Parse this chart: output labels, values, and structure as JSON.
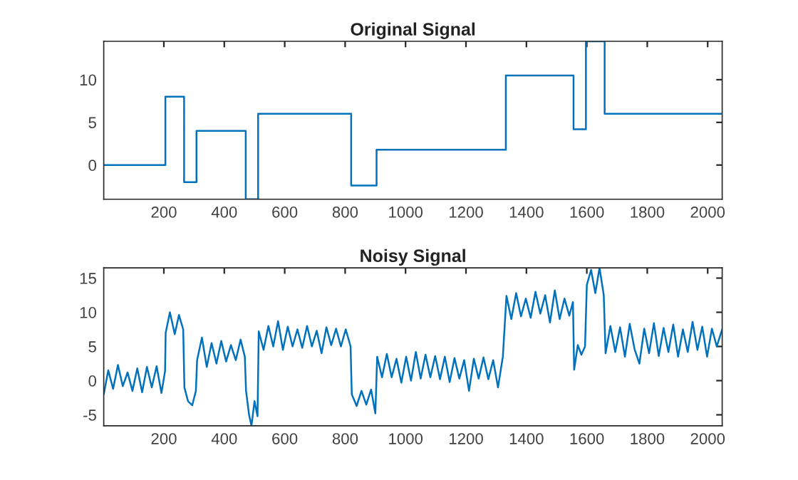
{
  "chart_data": [
    {
      "type": "step",
      "title": "Original Signal",
      "xlim": [
        1,
        2048
      ],
      "ylim": [
        -4,
        14.5
      ],
      "xticks": [
        200,
        400,
        600,
        800,
        1000,
        1200,
        1400,
        1600,
        1800,
        2000
      ],
      "yticks": [
        0,
        5,
        10
      ],
      "grid": false,
      "legend": false,
      "series": [
        {
          "color": "#0072bd",
          "x": [
            1,
            205,
            267,
            308,
            471,
            512,
            820,
            904,
            1332,
            1556,
            1597,
            1659,
            2048
          ],
          "values": [
            0,
            8,
            -2,
            4,
            -4,
            6,
            -2.4,
            1.8,
            10.5,
            4.2,
            14.5,
            6,
            6
          ]
        }
      ]
    },
    {
      "type": "line",
      "title": "Noisy Signal",
      "xlim": [
        1,
        2048
      ],
      "ylim": [
        -6.6,
        16.5
      ],
      "xticks": [
        200,
        400,
        600,
        800,
        1000,
        1200,
        1400,
        1600,
        1800,
        2000
      ],
      "yticks": [
        -5,
        0,
        5,
        10,
        15
      ],
      "grid": false,
      "legend": false,
      "series": [
        {
          "color": "#0072bd",
          "x": [
            1,
            16,
            32,
            48,
            64,
            80,
            96,
            112,
            128,
            144,
            160,
            176,
            192,
            204,
            206,
            220,
            236,
            250,
            264,
            268,
            280,
            294,
            306,
            310,
            326,
            342,
            358,
            374,
            390,
            406,
            422,
            438,
            454,
            468,
            472,
            482,
            490,
            500,
            510,
            514,
            530,
            546,
            562,
            578,
            594,
            610,
            626,
            642,
            658,
            674,
            690,
            706,
            722,
            738,
            754,
            770,
            786,
            802,
            818,
            822,
            838,
            854,
            870,
            886,
            900,
            906,
            922,
            938,
            954,
            970,
            986,
            1002,
            1018,
            1034,
            1050,
            1066,
            1082,
            1098,
            1114,
            1130,
            1146,
            1162,
            1178,
            1194,
            1210,
            1226,
            1242,
            1258,
            1274,
            1290,
            1306,
            1322,
            1334,
            1350,
            1366,
            1382,
            1398,
            1414,
            1430,
            1446,
            1462,
            1478,
            1494,
            1510,
            1526,
            1542,
            1554,
            1558,
            1570,
            1582,
            1594,
            1600,
            1614,
            1628,
            1642,
            1656,
            1662,
            1678,
            1694,
            1710,
            1726,
            1742,
            1758,
            1774,
            1790,
            1806,
            1822,
            1838,
            1854,
            1870,
            1886,
            1902,
            1918,
            1934,
            1950,
            1966,
            1982,
            1998,
            2014,
            2030,
            2048
          ],
          "values": [
            -2,
            1.5,
            -1.2,
            2.3,
            -0.8,
            1.2,
            -1.5,
            1.8,
            -1.7,
            2,
            -1,
            2.1,
            -1.8,
            1.4,
            7,
            10,
            6.8,
            9.6,
            7.5,
            -1,
            -3,
            -3.6,
            -1.5,
            3,
            6.3,
            2,
            5.5,
            2.5,
            5.8,
            2.8,
            5.2,
            3,
            6,
            3.5,
            -1.5,
            -5,
            -6.6,
            -3,
            -5.2,
            7.2,
            4.5,
            8,
            5,
            8.7,
            4.5,
            7.9,
            5,
            7.5,
            4.8,
            8,
            5,
            7.3,
            4,
            7.8,
            5.2,
            7.6,
            5,
            7.5,
            5,
            -2,
            -3.7,
            -1.5,
            -3.5,
            -1.3,
            -4.8,
            3.5,
            0.5,
            3.9,
            0.5,
            3.2,
            -0.3,
            3.5,
            0,
            4.2,
            0.3,
            3.8,
            0.5,
            3.6,
            0.2,
            3.5,
            -0.2,
            3.3,
            0.3,
            3,
            -1.5,
            3.2,
            0.3,
            3.4,
            0.2,
            3,
            -1,
            3.5,
            12.4,
            9,
            12.8,
            9.4,
            12,
            9.2,
            13,
            9.8,
            12.5,
            8.5,
            13.2,
            9,
            12,
            9.5,
            11.5,
            1.6,
            5.2,
            3.8,
            5,
            14,
            16.2,
            12.8,
            16.5,
            12.5,
            4,
            8,
            4.2,
            7.8,
            3.5,
            8.3,
            4.6,
            2.5,
            7.6,
            4,
            8.4,
            3.6,
            7.7,
            4.2,
            8.2,
            3.5,
            7.5,
            4.2,
            8.6,
            4.5,
            7.9,
            3.5,
            7.6,
            5,
            7.5
          ]
        }
      ]
    }
  ]
}
